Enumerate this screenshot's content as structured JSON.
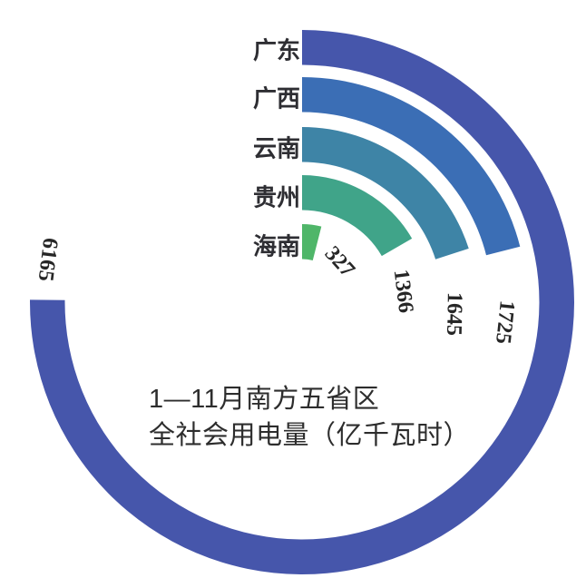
{
  "chart_data": {
    "type": "bar",
    "subtype": "radial-bar",
    "title": "1—11月南方五省区 全社会用电量（亿千瓦时）",
    "title_lines": [
      "1—11月南方五省区",
      "全社会用电量（亿千瓦时）"
    ],
    "unit": "亿千瓦时",
    "categories": [
      "广东",
      "广西",
      "云南",
      "贵州",
      "海南"
    ],
    "values": [
      6165,
      1725,
      1645,
      1366,
      327
    ],
    "colors": [
      "#4656ab",
      "#3b6eb5",
      "#3e84a6",
      "#40a489",
      "#4fb669"
    ],
    "max_value": 6165,
    "max_sweep_deg": 270.5,
    "start_angle_deg": 0,
    "direction": "clockwise",
    "grid": "off",
    "legend": "none",
    "text_color": "#2e2e33",
    "background": "#ffffff"
  }
}
